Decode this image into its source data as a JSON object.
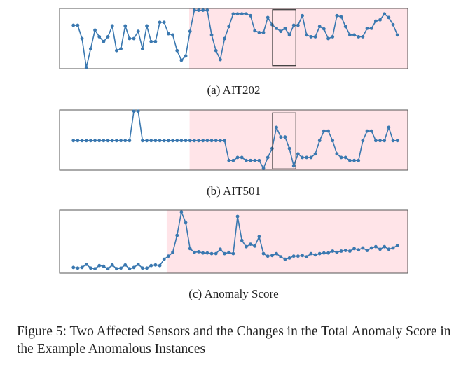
{
  "chart_data": [
    {
      "type": "line",
      "title": "(a) AIT202",
      "color": "#3a78b0",
      "ylim": [
        0,
        100
      ],
      "xlim": [
        -3.2,
        77.4
      ],
      "highlight": {
        "from": 26.8,
        "color": "#ffe4e8"
      },
      "box": {
        "x": [
          46.1,
          51.5
        ],
        "y": [
          5,
          98
        ]
      },
      "values": [
        72,
        72,
        50,
        2,
        33,
        64,
        53,
        45,
        53,
        71,
        30,
        33,
        71,
        50,
        50,
        62,
        33,
        71,
        45,
        45,
        77,
        77,
        58,
        56,
        30,
        14,
        21,
        62,
        97,
        97,
        97,
        97,
        56,
        30,
        15,
        50,
        70,
        91,
        91,
        91,
        91,
        88,
        63,
        60,
        60,
        85,
        73,
        67,
        62,
        67,
        56,
        72,
        72,
        88,
        56,
        53,
        53,
        70,
        66,
        50,
        53,
        88,
        86,
        70,
        56,
        56,
        53,
        53,
        67,
        67,
        79,
        81,
        91,
        85,
        73,
        56
      ]
    },
    {
      "type": "line",
      "title": "(b) AIT501",
      "color": "#3a78b0",
      "ylim": [
        0,
        100
      ],
      "xlim": [
        -3.2,
        77.4
      ],
      "highlight": {
        "from": 26.9,
        "color": "#ffe4e8"
      },
      "box": {
        "x": [
          46.1,
          51.5
        ],
        "y": [
          2,
          95
        ]
      },
      "values": [
        49,
        49,
        49,
        49,
        49,
        49,
        49,
        49,
        49,
        49,
        49,
        49,
        49,
        49,
        98,
        98,
        49,
        49,
        49,
        49,
        49,
        49,
        49,
        49,
        49,
        49,
        49,
        49,
        49,
        49,
        49,
        49,
        49,
        49,
        49,
        49,
        16,
        16,
        21,
        21,
        16,
        16,
        16,
        16,
        3,
        21,
        36,
        71,
        55,
        55,
        36,
        7,
        27,
        21,
        21,
        21,
        27,
        49,
        65,
        65,
        49,
        27,
        21,
        21,
        16,
        16,
        16,
        49,
        65,
        65,
        49,
        49,
        49,
        71,
        49,
        49
      ]
    },
    {
      "type": "line",
      "title": "(c) Anomaly Score",
      "color": "#3a78b0",
      "ylim": [
        0,
        100
      ],
      "xlim": [
        -3.2,
        77.4
      ],
      "highlight": {
        "from": 21.6,
        "color": "#ffe4e8"
      },
      "values": [
        9,
        8,
        9,
        14,
        8,
        7,
        12,
        11,
        7,
        13,
        7,
        8,
        13,
        7,
        9,
        14,
        8,
        8,
        12,
        13,
        12,
        22,
        27,
        33,
        60,
        97,
        80,
        39,
        33,
        34,
        32,
        32,
        31,
        31,
        38,
        31,
        33,
        31,
        90,
        52,
        42,
        46,
        43,
        58,
        31,
        27,
        28,
        31,
        26,
        22,
        24,
        27,
        27,
        28,
        26,
        31,
        29,
        31,
        32,
        32,
        35,
        33,
        35,
        36,
        35,
        39,
        37,
        40,
        36,
        40,
        42,
        38,
        42,
        38,
        40,
        44
      ]
    }
  ],
  "caption": "Figure 5: Two Affected Sensors and the Changes in the Total Anomaly Score in the Example Anomalous Instances"
}
